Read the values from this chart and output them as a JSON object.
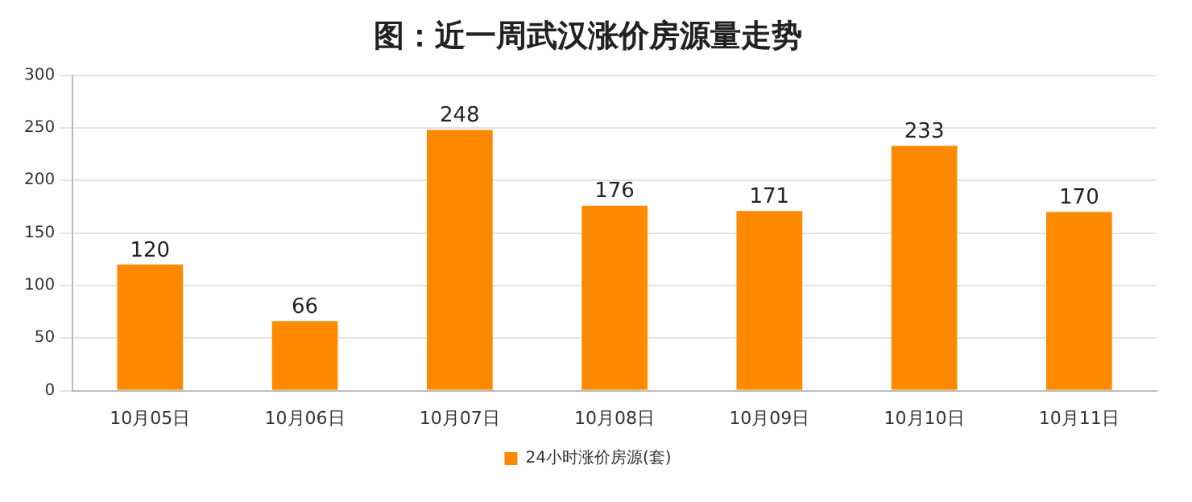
{
  "chart_data": {
    "type": "bar",
    "title": "图：近一周武汉涨价房源量走势",
    "categories": [
      "10月05日",
      "10月06日",
      "10月07日",
      "10月08日",
      "10月09日",
      "10月10日",
      "10月11日"
    ],
    "series": [
      {
        "name": "24小时涨价房源(套)",
        "color": "#ff8a00",
        "values": [
          120,
          66,
          248,
          176,
          171,
          233,
          170
        ]
      }
    ],
    "ylim": [
      0,
      300
    ],
    "yticks": [
      0,
      50,
      100,
      150,
      200,
      250,
      300
    ],
    "grid": "y",
    "legend": "bottom",
    "data_labels": true
  }
}
